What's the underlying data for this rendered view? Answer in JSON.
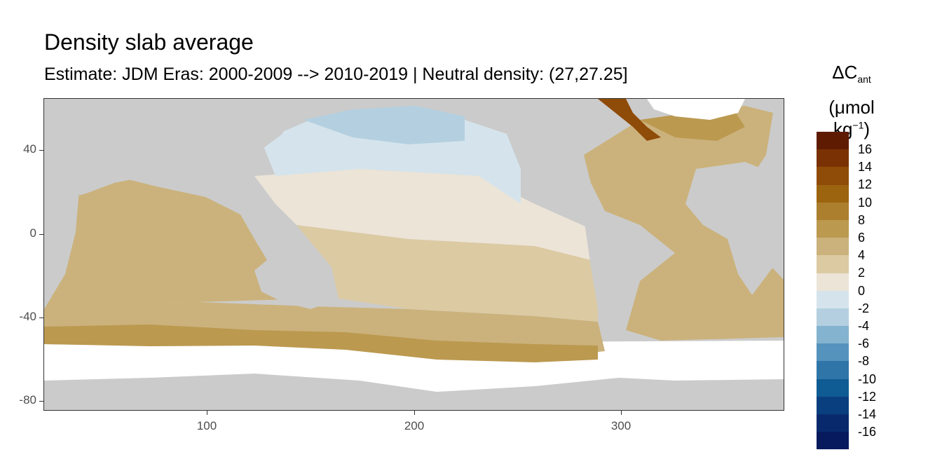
{
  "title": "Density slab average",
  "subtitle": "Estimate: JDM Eras: 2000-2009 --> 2010-2019 | Neutral density: (27,27.25]",
  "legend": {
    "title_main": "ΔC",
    "title_sub": "ant",
    "unit_open": "(μmol kg",
    "unit_sup": "−1",
    "unit_close": ")",
    "labels": [
      "16",
      "14",
      "12",
      "10",
      "8",
      "6",
      "4",
      "2",
      "0",
      "-2",
      "-4",
      "-6",
      "-8",
      "-10",
      "-12",
      "-14",
      "-16"
    ],
    "colors": [
      "#5e1b02",
      "#7a3204",
      "#8f4b08",
      "#9c640f",
      "#ab7f2e",
      "#bb994f",
      "#cbb27c",
      "#dccaa3",
      "#ece4d7",
      "#d5e4ec",
      "#b4d0e0",
      "#84b3cf",
      "#5593bd",
      "#2f75a8",
      "#0f5b93",
      "#0a3f7f",
      "#082a6c",
      "#071a5e"
    ]
  },
  "axes": {
    "y_ticks": [
      "40",
      "0",
      "-40",
      "-80"
    ],
    "x_ticks": [
      "100",
      "200",
      "300"
    ]
  },
  "map_colors": {
    "land": "#cbcbcb",
    "no_data": "#ffffff",
    "grid": "#ebebeb"
  }
}
